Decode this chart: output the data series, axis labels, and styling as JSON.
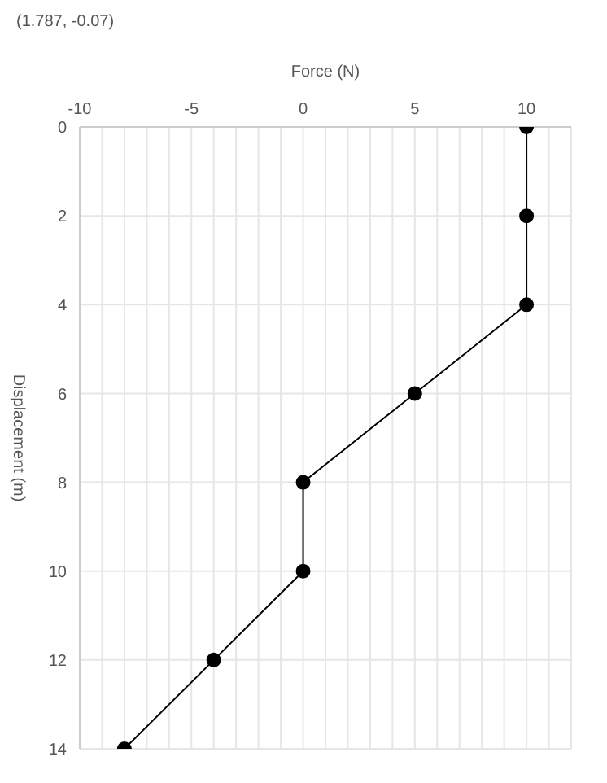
{
  "chart_data": {
    "type": "line",
    "xlabel": "Force (N)",
    "ylabel": "Displacement (m)",
    "series": [
      {
        "color": "#000000",
        "x": [
          10,
          10,
          10,
          5,
          0,
          0,
          -4,
          -8
        ],
        "values": [
          0,
          2,
          4,
          6,
          8,
          10,
          12,
          14
        ]
      }
    ],
    "xlim": [
      -10,
      12
    ],
    "xticks": [
      -10,
      {
        "value": -9,
        "label": null
      },
      {
        "value": -8,
        "label": null
      },
      {
        "value": -7,
        "label": null
      },
      {
        "value": -6,
        "label": null
      },
      -5,
      {
        "value": -4,
        "label": null
      },
      {
        "value": -3,
        "label": null
      },
      {
        "value": -2,
        "label": null
      },
      {
        "value": -1,
        "label": null
      },
      0,
      {
        "value": 1,
        "label": null
      },
      {
        "value": 2,
        "label": null
      },
      {
        "value": 3,
        "label": null
      },
      {
        "value": 4,
        "label": null
      },
      5,
      {
        "value": 6,
        "label": null
      },
      {
        "value": 7,
        "label": null
      },
      {
        "value": 8,
        "label": null
      },
      {
        "value": 9,
        "label": null
      },
      10,
      {
        "value": 11,
        "label": null
      }
    ],
    "ylim": [
      14,
      0
    ],
    "yticks": [
      0,
      2,
      4,
      6,
      8,
      10,
      12,
      14
    ],
    "grid": true,
    "marker": "circle",
    "line_style": "solid",
    "annotations": [
      "(1.787, -0.07)"
    ]
  }
}
